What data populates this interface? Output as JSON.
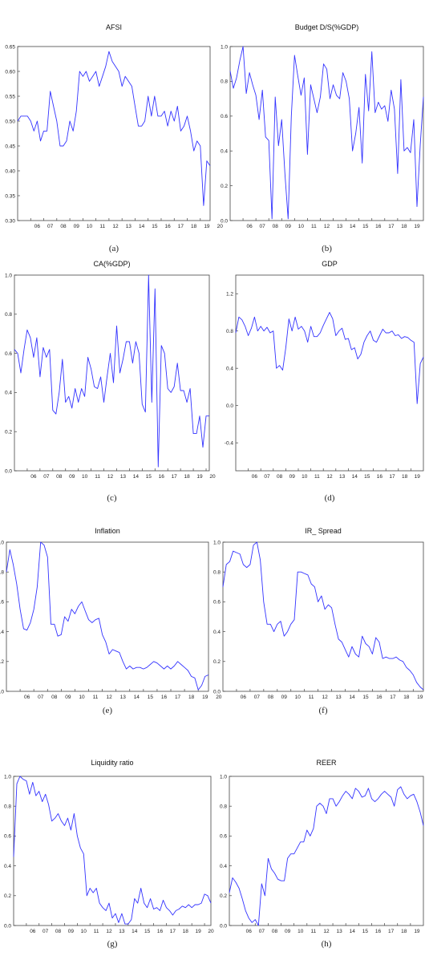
{
  "chart_data": [
    {
      "type": "line",
      "caption": "(a)",
      "title": "AFSI",
      "ylim": [
        0.3,
        0.65
      ],
      "yticks": [
        "0.30",
        "0.35",
        "0.40",
        "0.45",
        "0.50",
        "0.55",
        "0.60",
        "0.65"
      ],
      "xticks": [
        "06",
        "07",
        "08",
        "09",
        "10",
        "11",
        "12",
        "13",
        "14",
        "15",
        "16",
        "17",
        "18",
        "19",
        "20"
      ],
      "x_start": 2005.0,
      "x_step": 0.25,
      "values": [
        0.5,
        0.51,
        0.51,
        0.51,
        0.5,
        0.48,
        0.5,
        0.46,
        0.48,
        0.48,
        0.56,
        0.53,
        0.5,
        0.45,
        0.45,
        0.46,
        0.5,
        0.48,
        0.52,
        0.6,
        0.59,
        0.6,
        0.58,
        0.59,
        0.6,
        0.57,
        0.59,
        0.61,
        0.64,
        0.62,
        0.61,
        0.6,
        0.57,
        0.59,
        0.58,
        0.57,
        0.53,
        0.49,
        0.49,
        0.5,
        0.55,
        0.51,
        0.55,
        0.51,
        0.51,
        0.52,
        0.49,
        0.52,
        0.5,
        0.53,
        0.48,
        0.49,
        0.51,
        0.48,
        0.44,
        0.46,
        0.45,
        0.33,
        0.42,
        0.41
      ]
    },
    {
      "type": "line",
      "caption": "(b)",
      "title": "Budget D/S(%GDP)",
      "ylim": [
        0.0,
        1.0
      ],
      "yticks": [
        "0.0",
        "0.2",
        "0.4",
        "0.6",
        "0.8",
        "1.0"
      ],
      "xticks": [
        "06",
        "07",
        "08",
        "09",
        "10",
        "11",
        "12",
        "13",
        "14",
        "15",
        "16",
        "17",
        "18",
        "19",
        "20"
      ],
      "x_start": 2005.0,
      "x_step": 0.25,
      "values": [
        0.86,
        0.76,
        0.82,
        0.92,
        1.0,
        0.73,
        0.85,
        0.78,
        0.72,
        0.58,
        0.75,
        0.48,
        0.46,
        0.01,
        0.71,
        0.43,
        0.58,
        0.27,
        0.01,
        0.6,
        0.95,
        0.83,
        0.72,
        0.82,
        0.38,
        0.78,
        0.7,
        0.62,
        0.71,
        0.9,
        0.87,
        0.7,
        0.78,
        0.72,
        0.7,
        0.85,
        0.8,
        0.7,
        0.4,
        0.5,
        0.65,
        0.33,
        0.84,
        0.63,
        0.97,
        0.62,
        0.68,
        0.64,
        0.66,
        0.57,
        0.75,
        0.64,
        0.27,
        0.81,
        0.4,
        0.42,
        0.39,
        0.58,
        0.08,
        0.43,
        0.71
      ]
    },
    {
      "type": "line",
      "caption": "(c)",
      "title": "CA(%GDP)",
      "ylim": [
        0.0,
        1.0
      ],
      "yticks": [
        "0.0",
        "0.2",
        "0.4",
        "0.6",
        "0.8",
        "1.0"
      ],
      "xticks": [
        "06",
        "07",
        "08",
        "09",
        "10",
        "11",
        "12",
        "13",
        "14",
        "15",
        "16",
        "17",
        "18",
        "19",
        "20"
      ],
      "x_start": 2005.0,
      "x_step": 0.25,
      "values": [
        0.62,
        0.6,
        0.5,
        0.62,
        0.72,
        0.68,
        0.58,
        0.68,
        0.48,
        0.63,
        0.58,
        0.62,
        0.31,
        0.29,
        0.4,
        0.57,
        0.35,
        0.38,
        0.32,
        0.42,
        0.35,
        0.42,
        0.38,
        0.58,
        0.52,
        0.43,
        0.42,
        0.48,
        0.35,
        0.48,
        0.6,
        0.45,
        0.74,
        0.5,
        0.57,
        0.66,
        0.66,
        0.55,
        0.66,
        0.6,
        0.34,
        0.3,
        1.0,
        0.35,
        0.93,
        0.02,
        0.64,
        0.6,
        0.42,
        0.4,
        0.43,
        0.55,
        0.41,
        0.41,
        0.35,
        0.42,
        0.19,
        0.19,
        0.28,
        0.12,
        0.28,
        0.28
      ]
    },
    {
      "type": "line",
      "caption": "(d)",
      "title": "GDP",
      "ylim": [
        -0.7,
        1.4
      ],
      "yticks": [
        "-0.4",
        "0.0",
        "0.4",
        "0.8",
        "1.2"
      ],
      "ytick_values": [
        -0.4,
        0.0,
        0.4,
        0.8,
        1.2
      ],
      "xticks": [
        "06",
        "07",
        "08",
        "09",
        "10",
        "11",
        "12",
        "13",
        "14",
        "15",
        "16",
        "17",
        "18",
        "19",
        "20"
      ],
      "x_start": 2005.0,
      "x_step": 0.25,
      "values": [
        0.78,
        0.95,
        0.92,
        0.85,
        0.75,
        0.83,
        0.95,
        0.8,
        0.85,
        0.8,
        0.84,
        0.78,
        0.8,
        0.4,
        0.43,
        0.38,
        0.62,
        0.93,
        0.8,
        0.95,
        0.82,
        0.85,
        0.8,
        0.68,
        0.85,
        0.74,
        0.74,
        0.78,
        0.86,
        0.93,
        1.0,
        0.93,
        0.75,
        0.8,
        0.83,
        0.71,
        0.72,
        0.6,
        0.62,
        0.5,
        0.55,
        0.68,
        0.75,
        0.8,
        0.7,
        0.68,
        0.75,
        0.82,
        0.78,
        0.78,
        0.8,
        0.75,
        0.76,
        0.72,
        0.74,
        0.73,
        0.7,
        0.68,
        0.02,
        0.45,
        0.52
      ]
    },
    {
      "type": "line",
      "caption": "(e)",
      "title": "Inflation",
      "ylim": [
        0.0,
        1.0
      ],
      "yticks": [
        ".0",
        ".2",
        ".4",
        ".6",
        ".8",
        "1.0"
      ],
      "ytick_values": [
        0.0,
        0.2,
        0.4,
        0.6,
        0.8,
        1.0
      ],
      "xticks": [
        "06",
        "07",
        "08",
        "09",
        "10",
        "11",
        "12",
        "13",
        "14",
        "15",
        "16",
        "17",
        "18",
        "19",
        "20"
      ],
      "x_start": 2005.0,
      "x_step": 0.25,
      "values": [
        0.8,
        0.95,
        0.85,
        0.72,
        0.55,
        0.42,
        0.41,
        0.46,
        0.55,
        0.7,
        1.0,
        0.98,
        0.9,
        0.45,
        0.45,
        0.37,
        0.38,
        0.5,
        0.47,
        0.55,
        0.52,
        0.57,
        0.6,
        0.54,
        0.48,
        0.46,
        0.48,
        0.49,
        0.38,
        0.33,
        0.25,
        0.28,
        0.27,
        0.26,
        0.2,
        0.15,
        0.17,
        0.15,
        0.16,
        0.16,
        0.15,
        0.16,
        0.18,
        0.2,
        0.19,
        0.17,
        0.15,
        0.17,
        0.15,
        0.17,
        0.2,
        0.18,
        0.16,
        0.14,
        0.1,
        0.09,
        0.01,
        0.04,
        0.1,
        0.11
      ]
    },
    {
      "type": "line",
      "caption": "(f)",
      "title": "IR_ Spread",
      "ylim": [
        0.0,
        1.0
      ],
      "yticks": [
        "0.0",
        "0.2",
        "0.4",
        "0.6",
        "0.8",
        "1.0"
      ],
      "xticks": [
        "06",
        "07",
        "08",
        "09",
        "10",
        "11",
        "12",
        "13",
        "14",
        "15",
        "16",
        "17",
        "18",
        "19",
        "20"
      ],
      "x_start": 2005.0,
      "x_step": 0.25,
      "values": [
        0.7,
        0.85,
        0.87,
        0.94,
        0.93,
        0.92,
        0.85,
        0.83,
        0.85,
        0.98,
        1.0,
        0.88,
        0.6,
        0.45,
        0.45,
        0.4,
        0.45,
        0.47,
        0.37,
        0.4,
        0.45,
        0.48,
        0.8,
        0.8,
        0.79,
        0.78,
        0.72,
        0.7,
        0.6,
        0.64,
        0.55,
        0.58,
        0.56,
        0.45,
        0.35,
        0.33,
        0.28,
        0.23,
        0.3,
        0.25,
        0.23,
        0.37,
        0.32,
        0.3,
        0.25,
        0.36,
        0.33,
        0.22,
        0.23,
        0.22,
        0.22,
        0.23,
        0.21,
        0.2,
        0.16,
        0.14,
        0.11,
        0.06,
        0.03,
        0.01
      ]
    },
    {
      "type": "line",
      "caption": "(g)",
      "title": "Liquidity ratio",
      "ylim": [
        0.0,
        1.0
      ],
      "yticks": [
        "0.0",
        "0.2",
        "0.4",
        "0.6",
        "0.8",
        "1.0"
      ],
      "xticks": [
        "06",
        "07",
        "08",
        "09",
        "10",
        "11",
        "12",
        "13",
        "14",
        "15",
        "16",
        "17",
        "18",
        "19",
        "20"
      ],
      "x_start": 2005.0,
      "x_step": 0.25,
      "values": [
        0.46,
        0.95,
        1.0,
        0.98,
        0.97,
        0.88,
        0.96,
        0.87,
        0.9,
        0.83,
        0.88,
        0.81,
        0.7,
        0.72,
        0.75,
        0.7,
        0.67,
        0.72,
        0.64,
        0.75,
        0.6,
        0.52,
        0.48,
        0.2,
        0.25,
        0.22,
        0.25,
        0.15,
        0.12,
        0.1,
        0.15,
        0.05,
        0.08,
        0.02,
        0.08,
        0.01,
        0.01,
        0.04,
        0.18,
        0.15,
        0.25,
        0.15,
        0.12,
        0.18,
        0.11,
        0.12,
        0.1,
        0.17,
        0.12,
        0.1,
        0.07,
        0.1,
        0.11,
        0.13,
        0.12,
        0.14,
        0.12,
        0.14,
        0.14,
        0.15,
        0.21,
        0.2,
        0.15
      ]
    },
    {
      "type": "line",
      "caption": "(h)",
      "title": "REER",
      "ylim": [
        0.0,
        1.0
      ],
      "yticks": [
        "0.0",
        "0.2",
        "0.4",
        "0.6",
        "0.8",
        "1.0"
      ],
      "xticks": [
        "06",
        "07",
        "08",
        "09",
        "10",
        "11",
        "12",
        "13",
        "14",
        "15",
        "16",
        "17",
        "18",
        "19",
        "20"
      ],
      "x_start": 2005.0,
      "x_step": 0.25,
      "values": [
        0.22,
        0.32,
        0.29,
        0.25,
        0.18,
        0.1,
        0.05,
        0.02,
        0.04,
        0.0,
        0.28,
        0.2,
        0.45,
        0.38,
        0.35,
        0.31,
        0.3,
        0.3,
        0.45,
        0.48,
        0.48,
        0.52,
        0.56,
        0.56,
        0.64,
        0.6,
        0.65,
        0.8,
        0.82,
        0.8,
        0.75,
        0.85,
        0.85,
        0.8,
        0.83,
        0.87,
        0.9,
        0.88,
        0.85,
        0.92,
        0.9,
        0.86,
        0.87,
        0.92,
        0.85,
        0.83,
        0.85,
        0.88,
        0.9,
        0.88,
        0.86,
        0.8,
        0.91,
        0.93,
        0.88,
        0.85,
        0.87,
        0.88,
        0.83,
        0.76,
        0.67
      ]
    }
  ]
}
